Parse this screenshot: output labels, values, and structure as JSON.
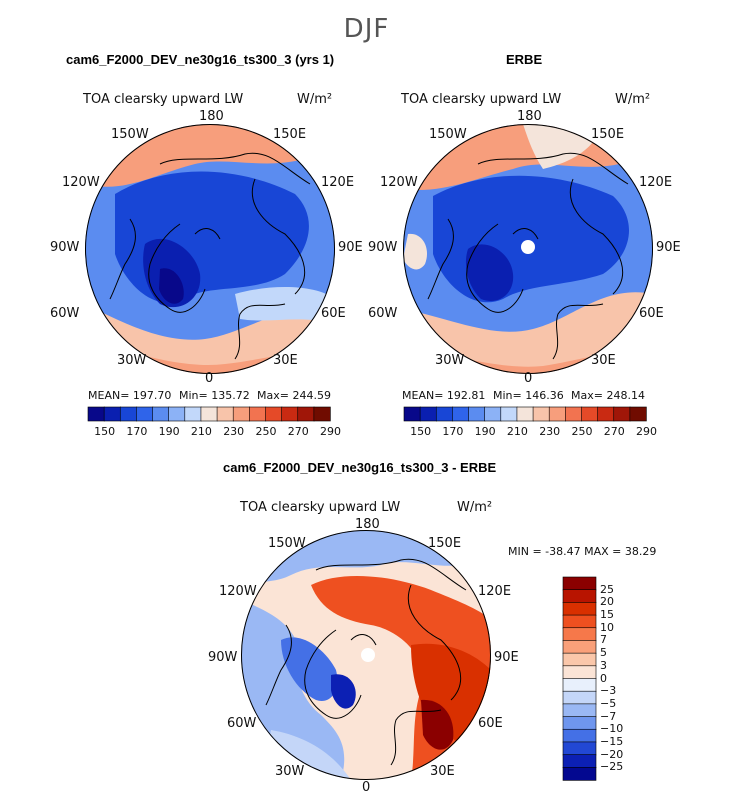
{
  "figure": {
    "season": "DJF",
    "panel_top_left_title": "cam6_F2000_DEV_ne30g16_ts300_3 (yrs 1)",
    "panel_top_right_title": "ERBE",
    "panel_bottom_title": "cam6_F2000_DEV_ne30g16_ts300_3 - ERBE"
  },
  "chart_data": [
    {
      "type": "heatmap",
      "projection": "polar stereographic (north pole)",
      "title": "cam6_F2000_DEV_ne30g16_ts300_3 (yrs 1)",
      "variable": "TOA clearsky upward LW",
      "units": "W/m²",
      "lon_labels": [
        "180",
        "150E",
        "120E",
        "90E",
        "60E",
        "30E",
        "0",
        "30W",
        "60W",
        "90W",
        "120W",
        "150W"
      ],
      "stats": {
        "mean_label": "MEAN= 197.70",
        "min_label": "Min= 135.72",
        "max_label": "Max= 244.59",
        "mean": 197.7,
        "min": 135.72,
        "max": 244.59
      },
      "colorbar_levels": [
        150,
        170,
        190,
        210,
        230,
        250,
        270,
        290
      ],
      "colorbar_tick_labels": [
        "150",
        "170",
        "190",
        "210",
        "230",
        "250",
        "270",
        "290"
      ],
      "colorbar_orientation": "horizontal"
    },
    {
      "type": "heatmap",
      "projection": "polar stereographic (north pole)",
      "title": "ERBE",
      "variable": "TOA clearsky upward LW",
      "units": "W/m²",
      "lon_labels": [
        "180",
        "150E",
        "120E",
        "90E",
        "60E",
        "30E",
        "0",
        "30W",
        "60W",
        "90W",
        "120W",
        "150W"
      ],
      "stats": {
        "mean_label": "MEAN= 192.81",
        "min_label": "Min= 146.36",
        "max_label": "Max= 248.14",
        "mean": 192.81,
        "min": 146.36,
        "max": 248.14
      },
      "colorbar_levels": [
        150,
        170,
        190,
        210,
        230,
        250,
        270,
        290
      ],
      "colorbar_tick_labels": [
        "150",
        "170",
        "190",
        "210",
        "230",
        "250",
        "270",
        "290"
      ],
      "colorbar_orientation": "horizontal"
    },
    {
      "type": "heatmap",
      "projection": "polar stereographic (north pole)",
      "title": "cam6_F2000_DEV_ne30g16_ts300_3 - ERBE",
      "variable": "TOA clearsky upward LW",
      "units": "W/m²",
      "lon_labels": [
        "180",
        "150E",
        "120E",
        "90E",
        "60E",
        "30E",
        "0",
        "30W",
        "60W",
        "90W",
        "120W",
        "150W"
      ],
      "stats": {
        "minmax_label": "MIN = -38.47  MAX =   38.29",
        "min": -38.47,
        "max": 38.29
      },
      "colorbar_levels": [
        25,
        20,
        15,
        10,
        7,
        5,
        3,
        0,
        -3,
        -5,
        -7,
        -10,
        -15,
        -20,
        -25
      ],
      "colorbar_tick_labels": [
        "25",
        "20",
        "15",
        "10",
        "7",
        "5",
        "3",
        "0",
        "−3",
        "−5",
        "−7",
        "−10",
        "−15",
        "−20",
        "−25"
      ],
      "colorbar_orientation": "vertical"
    }
  ],
  "colors": {
    "seq": [
      "#08088a",
      "#0a1fb0",
      "#1846d6",
      "#2f64ea",
      "#5b8cf0",
      "#8cb2f6",
      "#c2d8fa",
      "#f4e4da",
      "#f8c4aa",
      "#f79e7c",
      "#f27350",
      "#e54a28",
      "#c92a12",
      "#a01608",
      "#700c00"
    ],
    "diff": [
      "#8b0000",
      "#b81400",
      "#d93000",
      "#ee5020",
      "#f6784a",
      "#f9a07a",
      "#fac7aa",
      "#fbe4d6",
      "#e8f0fc",
      "#c4d6f8",
      "#9ab8f4",
      "#6f96ee",
      "#4470e6",
      "#2248d4",
      "#0c20b4",
      "#030890"
    ]
  }
}
